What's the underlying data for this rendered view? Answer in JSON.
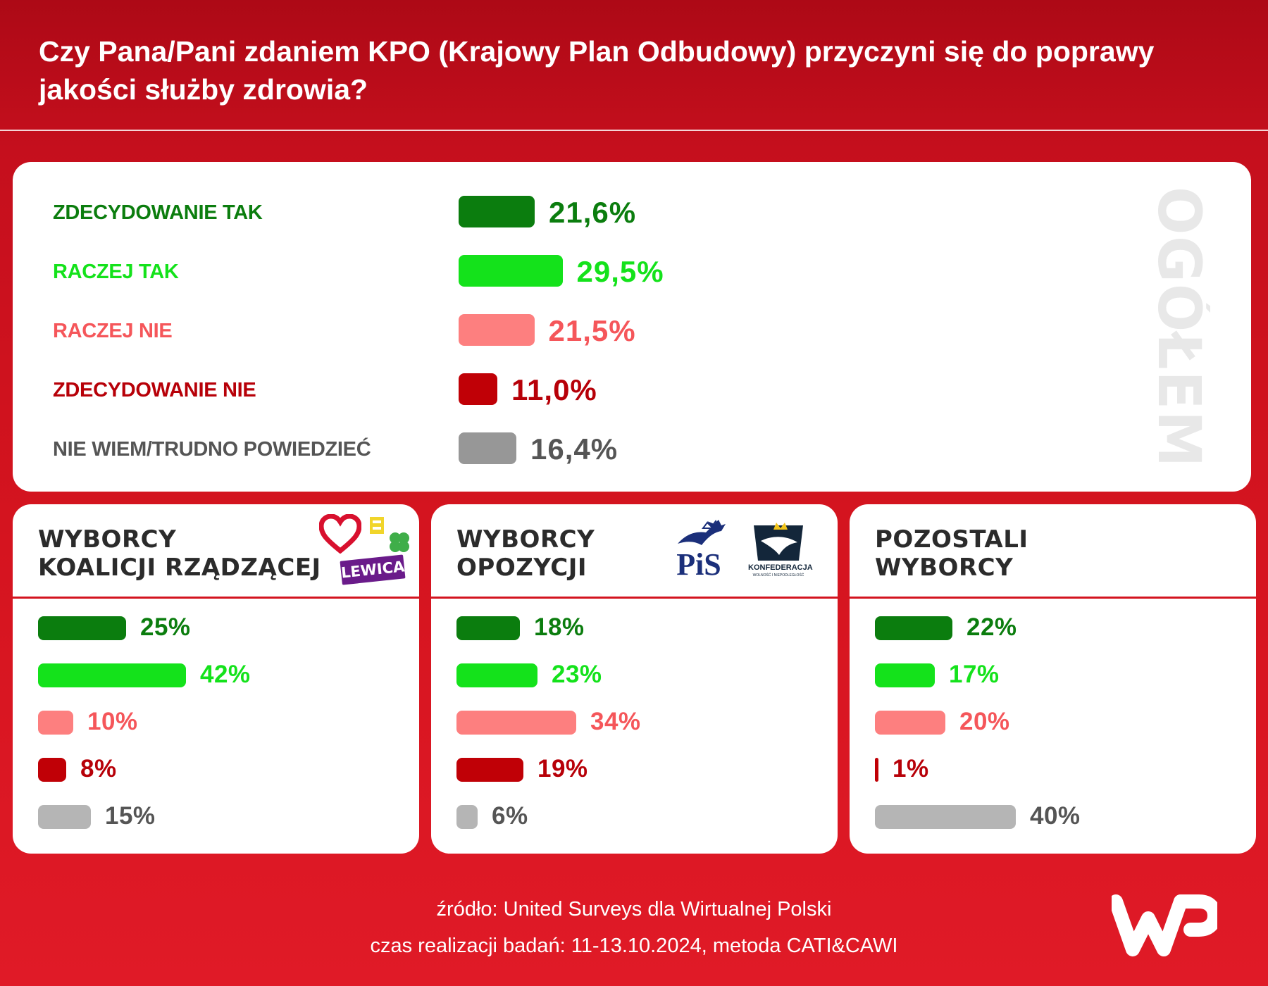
{
  "title": "Czy Pana/Pani zdaniem KPO (Krajowy Plan Odbudowy) przyczyni się do poprawy jakości służby zdrowia?",
  "colors": {
    "zdecydowanie_tak": "#0b7d0e",
    "raczej_tak": "#14e21b",
    "raczej_nie": "#fd7f7f",
    "zdecydowanie_nie": "#c00006",
    "nie_wiem_main": "#979797",
    "nie_wiem_sub": "#b5b5b5",
    "label_nie_wiem": "#555555",
    "label_raczej_nie": "#f5565a",
    "label_zdec_nie": "#b70008"
  },
  "main_label_vertical": "OGÓŁEM",
  "chart_data": [
    {
      "type": "bar",
      "title": "",
      "section": "OGÓŁEM",
      "categories": [
        "ZDECYDOWANIE TAK",
        "RACZEJ TAK",
        "RACZEJ NIE",
        "ZDECYDOWANIE NIE",
        "NIE WIEM/TRUDNO POWIEDZIEĆ"
      ],
      "values": [
        21.6,
        29.5,
        21.5,
        11.0,
        16.4
      ],
      "value_labels": [
        "21,6%",
        "29,5%",
        "21,5%",
        "11,0%",
        "16,4%"
      ],
      "unit": "%"
    },
    {
      "type": "bar",
      "section": "WYBORCY KOALICJI RZĄDZĄCEJ",
      "categories": [
        "ZDECYDOWANIE TAK",
        "RACZEJ TAK",
        "RACZEJ NIE",
        "ZDECYDOWANIE NIE",
        "NIE WIEM/TRUDNO POWIEDZIEĆ"
      ],
      "values": [
        25,
        42,
        10,
        8,
        15
      ],
      "value_labels": [
        "25%",
        "42%",
        "10%",
        "8%",
        "15%"
      ],
      "unit": "%"
    },
    {
      "type": "bar",
      "section": "WYBORCY OPOZYCJI",
      "categories": [
        "ZDECYDOWANIE TAK",
        "RACZEJ TAK",
        "RACZEJ NIE",
        "ZDECYDOWANIE NIE",
        "NIE WIEM/TRUDNO POWIEDZIEĆ"
      ],
      "values": [
        18,
        23,
        34,
        19,
        6
      ],
      "value_labels": [
        "18%",
        "23%",
        "34%",
        "19%",
        "6%"
      ],
      "unit": "%"
    },
    {
      "type": "bar",
      "section": "POZOSTALI WYBORCY",
      "categories": [
        "ZDECYDOWANIE TAK",
        "RACZEJ TAK",
        "RACZEJ NIE",
        "ZDECYDOWANIE NIE",
        "NIE WIEM/TRUDNO POWIEDZIEĆ"
      ],
      "values": [
        22,
        17,
        20,
        1,
        40
      ],
      "value_labels": [
        "22%",
        "17%",
        "20%",
        "1%",
        "40%"
      ],
      "unit": "%"
    }
  ],
  "groups": [
    {
      "title": "WYBORCY\nKOALICJI RZĄDZĄCEJ",
      "logos": [
        "heart-icon",
        "trzecia-droga-logo",
        "lewica-logo"
      ]
    },
    {
      "title": "WYBORCY\nOPOZYCJI",
      "logos": [
        "pis-logo",
        "konfederacja-logo"
      ]
    },
    {
      "title": "POZOSTALI\nWYBORCY",
      "logos": []
    }
  ],
  "logos": {
    "lewica": "LEWICA",
    "pis": "PiS",
    "konfederacja": "KONFEDERACJA",
    "konfederacja_sub": "WOLNOŚĆ I NIEPODLEGŁOŚĆ"
  },
  "footer": {
    "source": "źródło: United Surveys dla Wirtualnej Polski",
    "method": "czas realizacji badań: 11-13.10.2024, metoda CATI&CAWI"
  },
  "brand": "WP"
}
